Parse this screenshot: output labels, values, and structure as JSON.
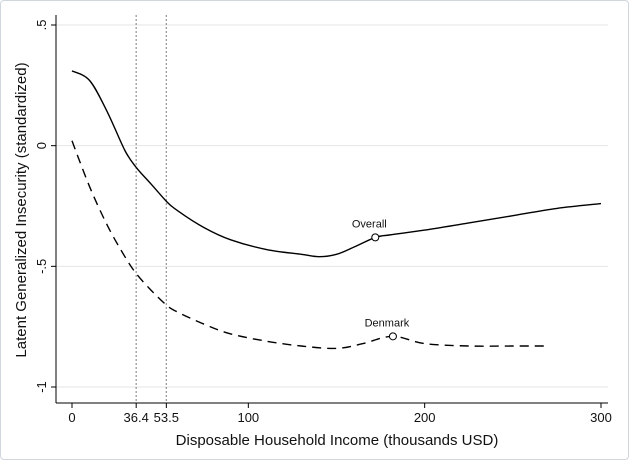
{
  "chart_data": {
    "type": "line",
    "title": "",
    "xlabel": "Disposable Household Income (thousands USD)",
    "ylabel": "Latent Generalized Insecurity (standardized)",
    "xlim": [
      0,
      300
    ],
    "ylim": [
      -1,
      0.5
    ],
    "x_ticks": [
      {
        "value": 0,
        "label": "0"
      },
      {
        "value": 36.4,
        "label": "36.4"
      },
      {
        "value": 53.5,
        "label": "53.5"
      },
      {
        "value": 100,
        "label": "100"
      },
      {
        "value": 200,
        "label": "200"
      },
      {
        "value": 300,
        "label": "300"
      }
    ],
    "y_ticks": [
      {
        "value": 0.5,
        "label": ".5"
      },
      {
        "value": 0,
        "label": "0"
      },
      {
        "value": -0.5,
        "label": "-.5"
      },
      {
        "value": -1,
        "label": "-1"
      }
    ],
    "grid": true,
    "reference_lines_x": [
      36.4,
      53.5
    ],
    "series": [
      {
        "name": "Overall",
        "style": "solid",
        "color": "#000000",
        "x": [
          0,
          10,
          20,
          30,
          36.4,
          45,
          53.5,
          60,
          75,
          90,
          110,
          130,
          140,
          150,
          160,
          172,
          180,
          200,
          225,
          250,
          275,
          300
        ],
        "y": [
          0.31,
          0.27,
          0.14,
          -0.02,
          -0.09,
          -0.16,
          -0.23,
          -0.27,
          -0.34,
          -0.39,
          -0.43,
          -0.45,
          -0.46,
          -0.45,
          -0.42,
          -0.38,
          -0.37,
          -0.35,
          -0.32,
          -0.29,
          -0.26,
          -0.24
        ]
      },
      {
        "name": "Denmark",
        "style": "dashed",
        "color": "#000000",
        "x": [
          0,
          10,
          20,
          30,
          36.4,
          45,
          53.5,
          60,
          75,
          90,
          110,
          130,
          150,
          165,
          182,
          200,
          225,
          250,
          268
        ],
        "y": [
          0.02,
          -0.17,
          -0.33,
          -0.46,
          -0.53,
          -0.6,
          -0.66,
          -0.69,
          -0.74,
          -0.78,
          -0.81,
          -0.83,
          -0.84,
          -0.82,
          -0.79,
          -0.82,
          -0.83,
          -0.83,
          -0.83
        ]
      }
    ],
    "annotations": [
      {
        "text": "Overall",
        "x": 172,
        "y": -0.38
      },
      {
        "text": "Denmark",
        "x": 182,
        "y": -0.79
      }
    ]
  }
}
